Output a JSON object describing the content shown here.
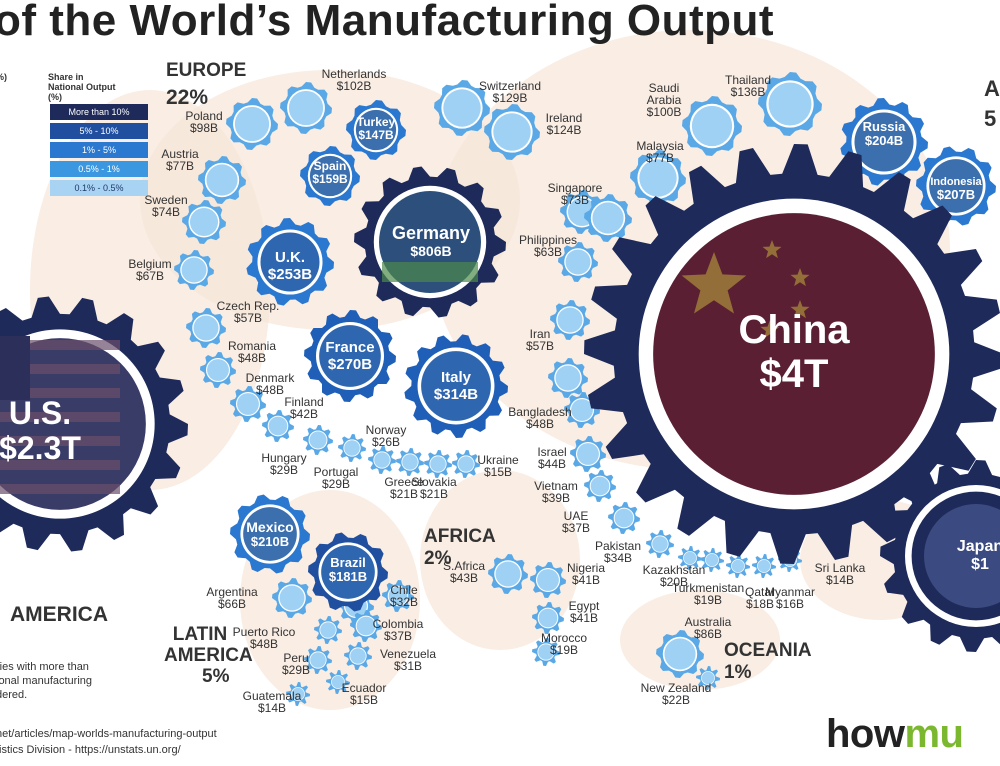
{
  "title": "of the World’s Manufacturing Output",
  "legend": {
    "left_head": "%)",
    "header": "Share in National Output (%)",
    "items": [
      {
        "label": "More than 10%",
        "color": "#1e2a5a"
      },
      {
        "label": "5% - 10%",
        "color": "#1f4f9e"
      },
      {
        "label": "1% - 5%",
        "color": "#2a78cf"
      },
      {
        "label": "0.5% - 1%",
        "color": "#3b97e0"
      },
      {
        "label": "0.1% - 0.5%",
        "color": "#a9d3f3"
      }
    ]
  },
  "regions": {
    "europe": {
      "name": "EUROPE",
      "pct": "22%"
    },
    "asia": {
      "name": "A",
      "pct": "5"
    },
    "north_america": {
      "name": "AMERICA"
    },
    "latin_america": {
      "name": "LATIN\nAMERICA",
      "pct": "5%"
    },
    "africa": {
      "name": "AFRICA",
      "pct": "2%"
    },
    "oceania": {
      "name": "OCEANIA",
      "pct": "1%"
    }
  },
  "gears_big": [
    {
      "name": "China",
      "value": "$4T"
    },
    {
      "name": "Germany",
      "value": "$806B"
    },
    {
      "name": "U.S.",
      "value": "$2.3T"
    },
    {
      "name": "Japan",
      "value": "$1"
    }
  ],
  "gears_in": [
    {
      "name": "Italy",
      "value": "$314B"
    },
    {
      "name": "France",
      "value": "$270B"
    },
    {
      "name": "U.K.",
      "value": "$253B"
    },
    {
      "name": "Mexico",
      "value": "$210B"
    },
    {
      "name": "Indonesia",
      "value": "$207B"
    },
    {
      "name": "Russia",
      "value": "$204B"
    },
    {
      "name": "Brazil",
      "value": "$181B"
    },
    {
      "name": "Spain",
      "value": "$159B"
    },
    {
      "name": "Turkey",
      "value": "$147B"
    }
  ],
  "labels": [
    {
      "name": "Netherlands",
      "value": "$102B"
    },
    {
      "name": "Switzerland",
      "value": "$129B"
    },
    {
      "name": "Ireland",
      "value": "$124B"
    },
    {
      "name": "Poland",
      "value": "$98B"
    },
    {
      "name": "Austria",
      "value": "$77B"
    },
    {
      "name": "Sweden",
      "value": "$74B"
    },
    {
      "name": "Belgium",
      "value": "$67B"
    },
    {
      "name": "Czech Rep.",
      "value": "$57B"
    },
    {
      "name": "Romania",
      "value": "$48B"
    },
    {
      "name": "Denmark",
      "value": "$48B"
    },
    {
      "name": "Finland",
      "value": "$42B"
    },
    {
      "name": "Hungary",
      "value": "$29B"
    },
    {
      "name": "Portugal",
      "value": "$29B"
    },
    {
      "name": "Norway",
      "value": "$26B"
    },
    {
      "name": "Greece",
      "value": "$21B"
    },
    {
      "name": "Slovakia",
      "value": "$21B"
    },
    {
      "name": "Ukraine",
      "value": "$15B"
    },
    {
      "name": "Saudi\nArabia",
      "value": "$100B"
    },
    {
      "name": "Thailand",
      "value": "$136B"
    },
    {
      "name": "Malaysia",
      "value": "$77B"
    },
    {
      "name": "Singapore",
      "value": "$73B"
    },
    {
      "name": "Philippines",
      "value": "$63B"
    },
    {
      "name": "Iran",
      "value": "$57B"
    },
    {
      "name": "Bangladesh",
      "value": "$48B"
    },
    {
      "name": "Israel",
      "value": "$44B"
    },
    {
      "name": "Vietnam",
      "value": "$39B"
    },
    {
      "name": "UAE",
      "value": "$37B"
    },
    {
      "name": "Pakistan",
      "value": "$34B"
    },
    {
      "name": "Kazakhstan",
      "value": "$20B"
    },
    {
      "name": "Turkmenistan",
      "value": "$19B"
    },
    {
      "name": "Qatar",
      "value": "$18B"
    },
    {
      "name": "Myanmar",
      "value": "$16B"
    },
    {
      "name": "Sri Lanka",
      "value": "$14B"
    },
    {
      "name": "S.Africa",
      "value": "$43B"
    },
    {
      "name": "Nigeria",
      "value": "$41B"
    },
    {
      "name": "Egypt",
      "value": "$41B"
    },
    {
      "name": "Morocco",
      "value": "$19B"
    },
    {
      "name": "Australia",
      "value": "$86B"
    },
    {
      "name": "New Zealand",
      "value": "$22B"
    },
    {
      "name": "Argentina",
      "value": "$66B"
    },
    {
      "name": "Chile",
      "value": "$32B"
    },
    {
      "name": "Colombia",
      "value": "$37B"
    },
    {
      "name": "Puerto Rico",
      "value": "$48B"
    },
    {
      "name": "Venezuela",
      "value": "$31B"
    },
    {
      "name": "Peru",
      "value": "$29B"
    },
    {
      "name": "Ecuador",
      "value": "$15B"
    },
    {
      "name": "Guatemala",
      "value": "$14B"
    }
  ],
  "footnote": [
    "ries with more than",
    "ional manufacturing",
    "dered."
  ],
  "source_lines": [
    "net/articles/map-worlds-manufacturing-output",
    "tistics Division - https://unstats.un.org/"
  ],
  "brand": {
    "pre": "how",
    "post": "mu"
  },
  "colors": {
    "navy": "#1e2a5a",
    "blue5_10": "#1f4f9e",
    "blue1_5": "#2a78cf",
    "blue05_1": "#3b97e0",
    "blue01_05": "#a9d3f3",
    "china_red": "#5b1f33",
    "land": "#f6e6d8"
  }
}
